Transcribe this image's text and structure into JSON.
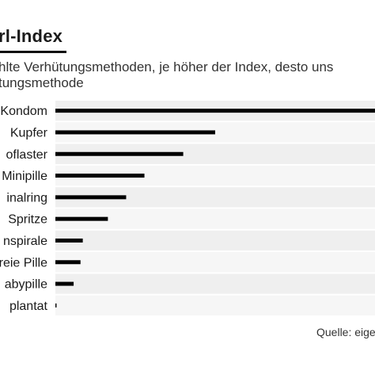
{
  "header": {
    "title": "rl-Index",
    "subtitle_lines": [
      "hlte Verhütungsmethoden, je höher der Index, desto uns",
      "tungsmethode"
    ]
  },
  "footer": {
    "source": "Quelle: eige"
  },
  "colors": {
    "bar": "#000000",
    "band_light": "#efefef",
    "band_alt": "#f6f6f6",
    "text": "#1a1a1a"
  },
  "chart_data": {
    "type": "bar",
    "orientation": "horizontal",
    "categories": [
      "Kondom",
      "Kupfer",
      "oflaster",
      "Minipille",
      "inalring",
      "Spritze",
      "nspirale",
      "reie Pille",
      "abypille",
      "plantat"
    ],
    "values": [
      14,
      7,
      5.6,
      3.9,
      3.1,
      2.3,
      1.2,
      1.1,
      0.8,
      0.05
    ],
    "xlim": [
      0,
      14
    ],
    "grid": false,
    "legend": "none"
  }
}
